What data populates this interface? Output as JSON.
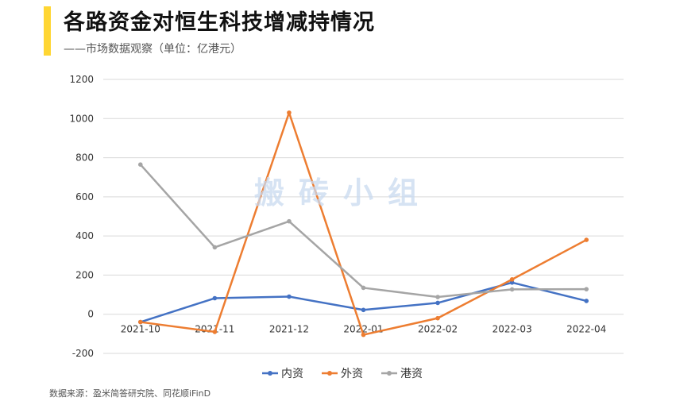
{
  "title": "各路资金对恒生科技增减持情况",
  "subtitle": "——市场数据观察（单位：亿港元）",
  "watermark": "搬砖小组",
  "source": "数据来源：盈米简答研究院、同花顺iFinD",
  "colors": {
    "accent": "#FFD633",
    "内资": "#4472C4",
    "外资": "#ED7D31",
    "港资": "#A5A5A5",
    "grid": "#D9D9D9"
  },
  "chart_data": {
    "type": "line",
    "categories": [
      "2021-10",
      "2021-11",
      "2021-12",
      "2022-01",
      "2022-02",
      "2022-03",
      "2022-04"
    ],
    "ylim": [
      -200,
      1200
    ],
    "yticks": [
      -200,
      0,
      200,
      400,
      600,
      800,
      1000,
      1200
    ],
    "grid": true,
    "legend": "bottom",
    "series": [
      {
        "name": "内资",
        "color": "#4472C4",
        "values": [
          -40,
          82,
          90,
          22,
          58,
          162,
          68
        ]
      },
      {
        "name": "外资",
        "color": "#ED7D31",
        "values": [
          -40,
          -90,
          1030,
          -105,
          -20,
          178,
          380
        ]
      },
      {
        "name": "港资",
        "color": "#A5A5A5",
        "values": [
          765,
          342,
          475,
          135,
          88,
          127,
          128
        ]
      }
    ]
  }
}
